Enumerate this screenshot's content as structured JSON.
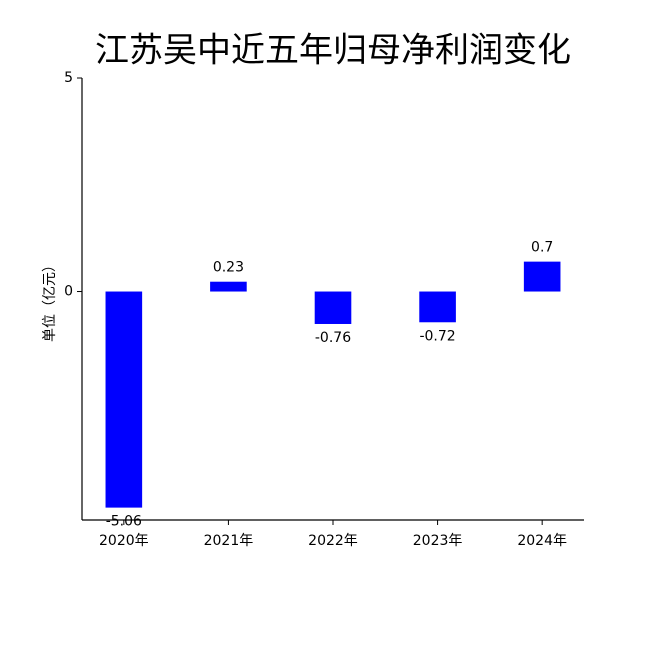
{
  "chart_data": {
    "type": "bar",
    "title": "江苏吴中近五年归母净利润变化",
    "y_label": "单位（亿元）",
    "categories": [
      "2020年",
      "2021年",
      "2022年",
      "2023年",
      "2024年"
    ],
    "values": [
      -5.06,
      0.23,
      -0.76,
      -0.72,
      0.7
    ],
    "color": "#0000ff",
    "ylim": [
      -5.35,
      5
    ],
    "yticks": [
      0,
      5
    ],
    "grid": false
  }
}
